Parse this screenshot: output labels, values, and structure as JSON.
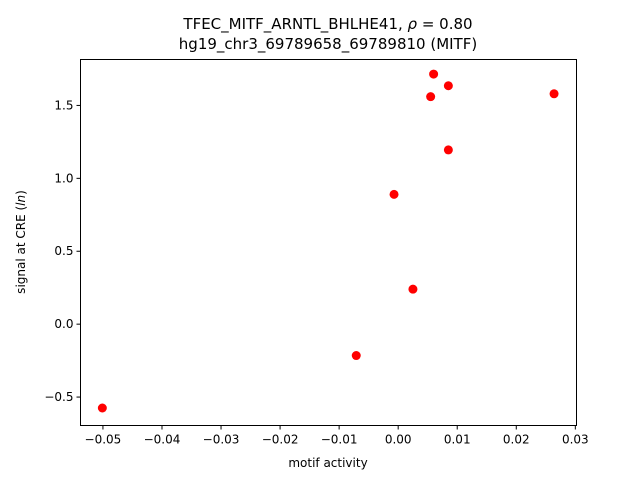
{
  "chart_data": {
    "type": "scatter",
    "title_line1_prefix": "TFEC_MITF_ARNTL_BHLHE41, ",
    "title_line1_rho": "ρ",
    "title_line1_suffix": " = 0.80",
    "title_line2": "hg19_chr3_69789658_69789810 (MITF)",
    "xlabel": "motif activity",
    "ylabel_prefix": "signal at CRE (",
    "ylabel_ln": "ln",
    "ylabel_suffix": ")",
    "xlim": [
      -0.0538,
      0.0302
    ],
    "ylim": [
      -0.695,
      1.815
    ],
    "grid": false,
    "marker_color": "#ff0000",
    "x_ticks": [
      {
        "value": -0.05,
        "label": "−0.05"
      },
      {
        "value": -0.04,
        "label": "−0.04"
      },
      {
        "value": -0.03,
        "label": "−0.03"
      },
      {
        "value": -0.02,
        "label": "−0.02"
      },
      {
        "value": -0.01,
        "label": "−0.01"
      },
      {
        "value": 0.0,
        "label": "0.00"
      },
      {
        "value": 0.01,
        "label": "0.01"
      },
      {
        "value": 0.02,
        "label": "0.02"
      },
      {
        "value": 0.03,
        "label": "0.03"
      }
    ],
    "y_ticks": [
      {
        "value": -0.5,
        "label": "−0.5"
      },
      {
        "value": 0.0,
        "label": "0.0"
      },
      {
        "value": 0.5,
        "label": "0.5"
      },
      {
        "value": 1.0,
        "label": "1.0"
      },
      {
        "value": 1.5,
        "label": "1.5"
      }
    ],
    "points": [
      {
        "x": -0.0501,
        "y": -0.575
      },
      {
        "x": -0.0071,
        "y": -0.215
      },
      {
        "x": -0.0007,
        "y": 0.89
      },
      {
        "x": 0.0025,
        "y": 0.24
      },
      {
        "x": 0.0055,
        "y": 1.56
      },
      {
        "x": 0.006,
        "y": 1.715
      },
      {
        "x": 0.0085,
        "y": 1.635
      },
      {
        "x": 0.0085,
        "y": 1.195
      },
      {
        "x": 0.0264,
        "y": 1.58
      }
    ]
  }
}
